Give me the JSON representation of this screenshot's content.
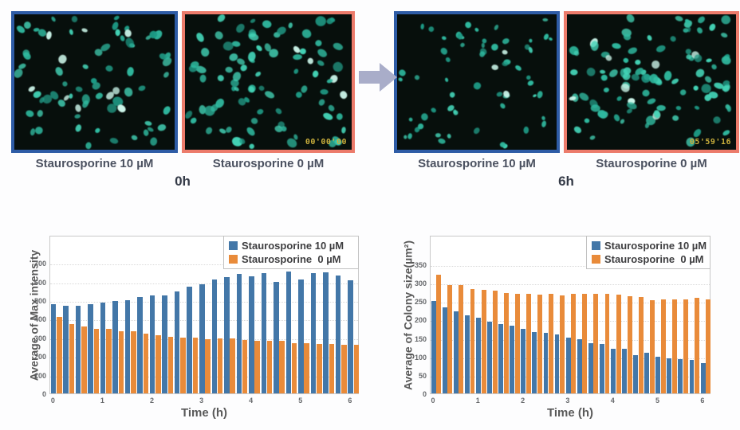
{
  "micro": {
    "arrow_color": "#a9adc9",
    "image_background": "#070f0c",
    "nucleus_colors": [
      "#1f9a85",
      "#2fbaa0",
      "#43d3b6",
      "#cdf8ec"
    ],
    "timestamp_color": "#c9ae3c",
    "groups": [
      {
        "label": "0h",
        "panels": [
          {
            "label": "Staurosporine 10 µM",
            "border_color": "#2e5ca6",
            "timestamp": "",
            "cell_count": 74,
            "cell_scale": 1.0,
            "seed": 11
          },
          {
            "label": "Staurosporine 0 µM",
            "border_color": "#ec7b6b",
            "timestamp": "00'00'00",
            "cell_count": 90,
            "cell_scale": 1.0,
            "seed": 27
          }
        ]
      },
      {
        "label": "6h",
        "panels": [
          {
            "label": "Staurosporine 10 µM",
            "border_color": "#2e5ca6",
            "timestamp": "",
            "cell_count": 62,
            "cell_scale": 0.72,
            "seed": 41
          },
          {
            "label": "Staurosporine 0 µM",
            "border_color": "#ec7b6b",
            "timestamp": "05'59'16",
            "cell_count": 100,
            "cell_scale": 0.95,
            "seed": 58
          }
        ]
      }
    ]
  },
  "chart_data": [
    {
      "type": "bar",
      "title": "",
      "ylabel": "Average of Max intensity",
      "xlabel": "Time (h)",
      "x_start": 0,
      "x_step": 0.25,
      "x_end": 6,
      "xticks": [
        0,
        1,
        2,
        3,
        4,
        5,
        6
      ],
      "yticks": [
        0,
        100,
        200,
        300,
        400,
        500,
        600,
        700
      ],
      "ylim": [
        0,
        850
      ],
      "grid": "horizontal-dotted",
      "legend_position": "top-right",
      "series": [
        {
          "name": "Staurosporine 10 µM",
          "color": "#4377A8",
          "values": [
            480,
            470,
            470,
            480,
            488,
            497,
            501,
            518,
            526,
            527,
            548,
            573,
            587,
            612,
            623,
            639,
            629,
            643,
            600,
            654,
            612,
            646,
            650,
            632,
            608
          ]
        },
        {
          "name": "Staurosporine  0 µM",
          "color": "#E98B3A",
          "values": [
            408,
            372,
            360,
            347,
            347,
            335,
            335,
            322,
            313,
            305,
            300,
            297,
            292,
            293,
            293,
            288,
            283,
            280,
            280,
            271,
            271,
            267,
            267,
            261,
            262
          ]
        }
      ]
    },
    {
      "type": "bar",
      "title": "",
      "ylabel": "Average of Colony size(µm²)",
      "xlabel": "Time (h)",
      "x_start": 0,
      "x_step": 0.25,
      "x_end": 6,
      "xticks": [
        0,
        1,
        2,
        3,
        4,
        5,
        6
      ],
      "yticks": [
        0,
        50,
        100,
        150,
        200,
        250,
        300,
        350
      ],
      "ylim": [
        0,
        430
      ],
      "grid": "horizontal-dotted",
      "legend_position": "top-right",
      "series": [
        {
          "name": "Staurosporine 10 µM",
          "color": "#4377A8",
          "values": [
            250,
            234,
            222,
            211,
            206,
            195,
            188,
            183,
            175,
            167,
            165,
            160,
            152,
            147,
            137,
            133,
            122,
            121,
            103,
            110,
            99,
            96,
            94,
            90,
            83
          ]
        },
        {
          "name": "Staurosporine  0 µM",
          "color": "#E98B3A",
          "values": [
            321,
            294,
            294,
            284,
            281,
            278,
            273,
            270,
            271,
            267,
            271,
            265,
            270,
            271,
            271,
            271,
            268,
            264,
            262,
            252,
            254,
            254,
            254,
            259,
            255
          ]
        }
      ]
    }
  ]
}
